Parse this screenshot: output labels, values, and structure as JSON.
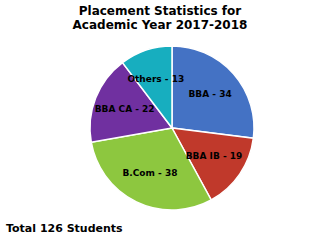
{
  "chart_data": {
    "type": "pie",
    "title": "Placement Statistics for\nAcademic Year 2017-2018",
    "annotations": [
      "Total 126 Students"
    ],
    "categories": [
      "BBA - 34",
      "BBA IB - 19",
      "B.Com - 38",
      "BBA CA - 22",
      "Others - 13"
    ],
    "values": [
      34,
      19,
      38,
      22,
      13
    ],
    "colors": [
      "#4472C4",
      "#C0392B",
      "#8DC73F",
      "#7030A0",
      "#17AEBF"
    ]
  }
}
